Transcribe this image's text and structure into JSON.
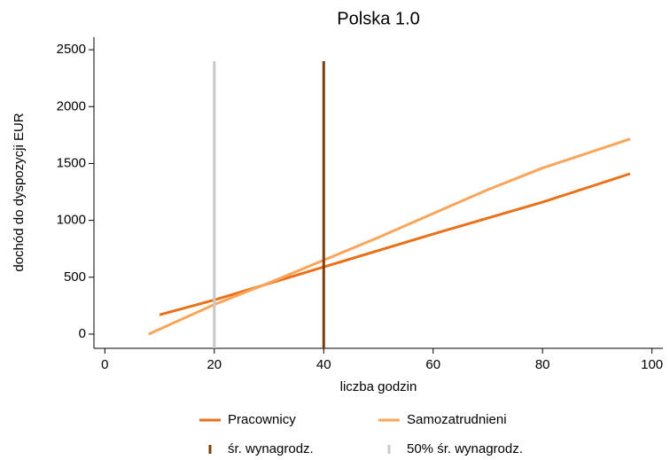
{
  "chart_data": {
    "type": "line",
    "title": "Polska 1.0",
    "x_label": "liczba godzin",
    "y_label": "dochód do dyspozycji EUR",
    "xlim": [
      -2,
      102
    ],
    "xticks": [
      0,
      20,
      40,
      60,
      80,
      100
    ],
    "ylim": [
      -125,
      2610
    ],
    "yticks": [
      0,
      500,
      1000,
      1500,
      2000,
      2500
    ],
    "grid": false,
    "legend": "bottom",
    "series": [
      {
        "name": "Pracownicy",
        "color": "#e8711a",
        "x": [
          10,
          20,
          40,
          60,
          80,
          96
        ],
        "values": [
          170,
          300,
          590,
          880,
          1160,
          1410
        ]
      },
      {
        "name": "Samozatrudnieni",
        "color": "#f9a55a",
        "x": [
          8,
          20,
          30,
          40,
          50,
          60,
          70,
          80,
          96
        ],
        "values": [
          0,
          260,
          450,
          650,
          850,
          1060,
          1270,
          1460,
          1715
        ]
      },
      {
        "name": "śr. wynagrodz.",
        "color": "#7f3f0a",
        "x": [
          40,
          40
        ],
        "values": [
          -125,
          2400
        ]
      },
      {
        "name": "50% śr. wynagrodz.",
        "color": "#c8c8c8",
        "x": [
          20,
          20
        ],
        "values": [
          -125,
          2400
        ]
      }
    ]
  }
}
